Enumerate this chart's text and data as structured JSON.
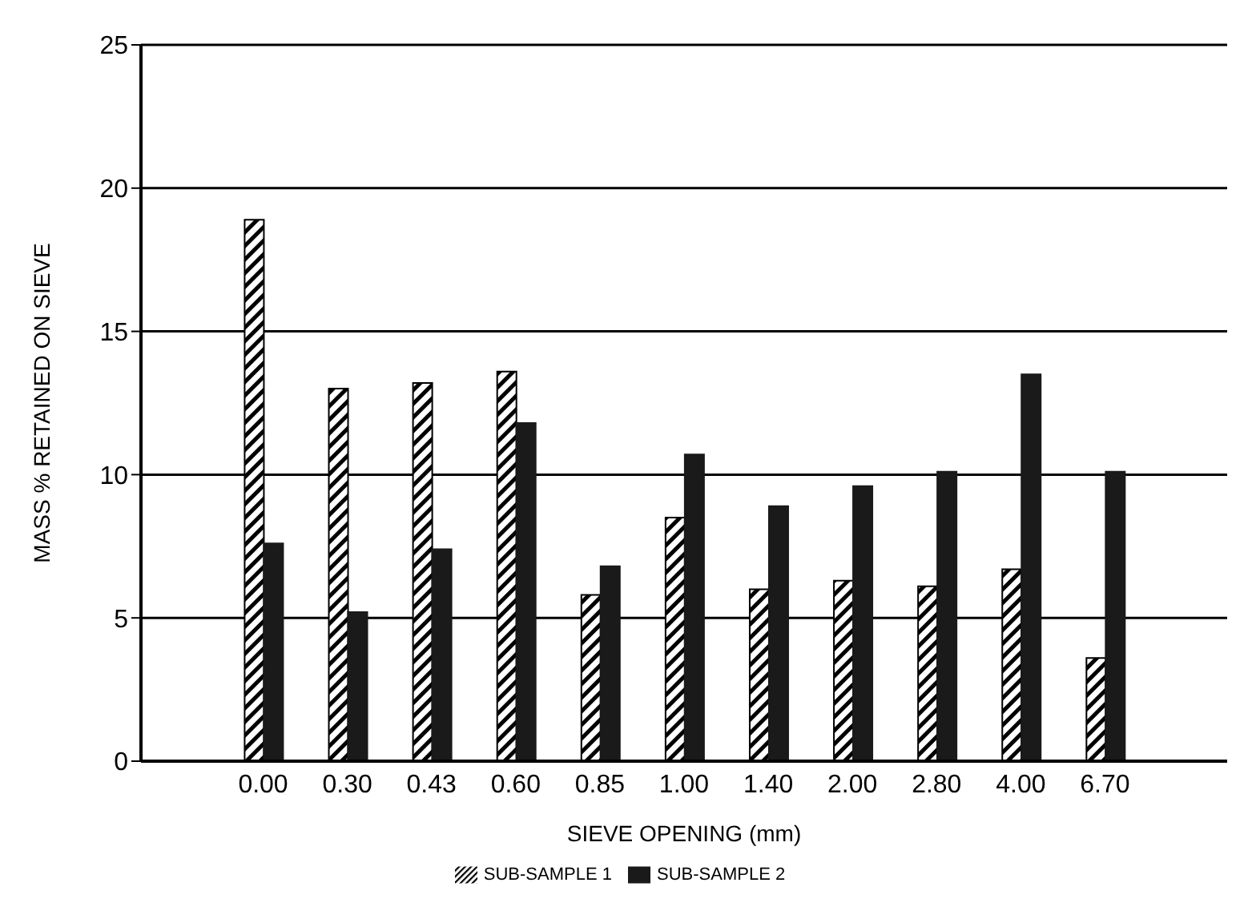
{
  "chart_data": {
    "type": "bar",
    "xlabel": "SIEVE OPENING (mm)",
    "ylabel": "MASS % RETAINED ON SIEVE",
    "categories": [
      "0.00",
      "0.30",
      "0.43",
      "0.60",
      "0.85",
      "1.00",
      "1.40",
      "2.00",
      "2.80",
      "4.00",
      "6.70"
    ],
    "series": [
      {
        "name": "SUB-SAMPLE 1",
        "color": "#000000",
        "values": [
          18.9,
          13.0,
          13.2,
          13.6,
          5.8,
          8.5,
          6.0,
          6.3,
          6.1,
          6.7,
          3.6
        ]
      },
      {
        "name": "SUB-SAMPLE 2",
        "color": "#1a1a1a",
        "values": [
          7.6,
          5.2,
          7.4,
          11.8,
          6.8,
          10.7,
          8.9,
          9.6,
          10.1,
          13.5,
          10.1
        ]
      }
    ],
    "ylim": [
      0,
      25
    ],
    "yticks": [
      0,
      5,
      10,
      15,
      20,
      25
    ],
    "grid": "y",
    "legend": "bottom"
  }
}
